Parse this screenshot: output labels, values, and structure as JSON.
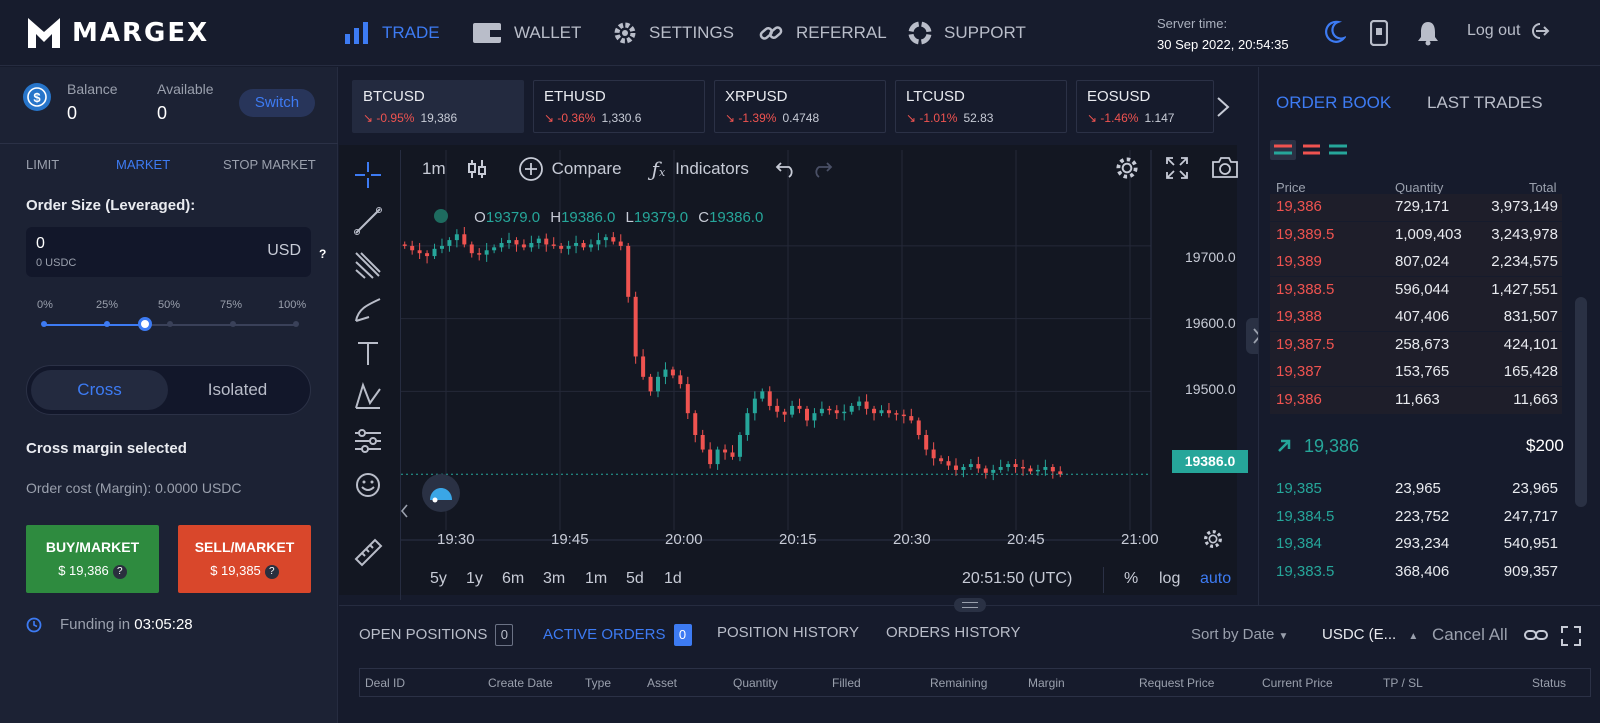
{
  "brand": {
    "name": "MARGEX"
  },
  "nav": [
    {
      "label": "TRADE",
      "icon": "bar-chart-icon"
    },
    {
      "label": "WALLET",
      "icon": "wallet-icon"
    },
    {
      "label": "SETTINGS",
      "icon": "gear-icon"
    },
    {
      "label": "REFERRAL",
      "icon": "link-icon"
    },
    {
      "label": "SUPPORT",
      "icon": "lifebuoy-icon"
    }
  ],
  "server": {
    "label": "Server time:",
    "value": "30 Sep 2022, 20:54:35"
  },
  "header_icons": [
    "moon-icon",
    "phone-icon",
    "bell-icon"
  ],
  "logout": {
    "label": "Log out"
  },
  "account": {
    "balance_label": "Balance",
    "balance": "0",
    "available_label": "Available",
    "available": "0",
    "switch_label": "Switch"
  },
  "order_types": [
    "LIMIT",
    "MARKET",
    "STOP MARKET"
  ],
  "order_size": {
    "label": "Order Size (Leveraged):",
    "value": "0",
    "sub": "0 USDC",
    "unit": "USD",
    "help": "?"
  },
  "percent_marks": [
    "0%",
    "25%",
    "50%",
    "75%",
    "100%"
  ],
  "slider_fraction": 0.4,
  "margin_mode": {
    "cross": "Cross",
    "isolated": "Isolated",
    "selected_text": "Cross margin selected",
    "order_cost": "Order cost (Margin): 0.0000 USDC"
  },
  "buy": {
    "label": "BUY/MARKET",
    "price": "$ 19,386",
    "help": "?"
  },
  "sell": {
    "label": "SELL/MARKET",
    "price": "$ 19,385",
    "help": "?"
  },
  "funding": {
    "label": "Funding in",
    "value": "03:05:28"
  },
  "tickers": [
    {
      "symbol": "BTCUSD",
      "change": "-0.95%",
      "price": "19,386"
    },
    {
      "symbol": "ETHUSD",
      "change": "-0.36%",
      "price": "1,330.6"
    },
    {
      "symbol": "XRPUSD",
      "change": "-1.39%",
      "price": "0.4748"
    },
    {
      "symbol": "LTCUSD",
      "change": "-1.01%",
      "price": "52.83"
    },
    {
      "symbol": "EOSUSD",
      "change": "-1.46%",
      "price": "1.147"
    }
  ],
  "chart_toolbar": {
    "interval": "1m",
    "compare": "Compare",
    "indicators": "Indicators"
  },
  "ohlc": {
    "o_label": "O",
    "o": "19379.0",
    "h_label": "H",
    "h": "19386.0",
    "l_label": "L",
    "l": "19379.0",
    "c_label": "C",
    "c": "19386.0"
  },
  "current_price": "19386.0",
  "range_buttons": [
    "5y",
    "1y",
    "6m",
    "3m",
    "1m",
    "5d",
    "1d"
  ],
  "chart_time": "20:51:50 (UTC)",
  "scale_buttons": {
    "percent": "%",
    "log": "log",
    "auto": "auto"
  },
  "colors": {
    "accent": "#3d7bf3",
    "up": "#26a69a",
    "down": "#ef5350",
    "buy": "#2e8b3f",
    "sell": "#d9472b"
  },
  "chart_data": {
    "type": "candlestick",
    "x_ticks": [
      "19:30",
      "19:45",
      "20:00",
      "20:15",
      "20:30",
      "20:45",
      "21:00"
    ],
    "y_ticks": [
      "19700.0",
      "19600.0",
      "19500.0"
    ],
    "ylim": [
      19330,
      19770
    ],
    "close_series": [
      19700,
      19694,
      19690,
      19686,
      19696,
      19700,
      19708,
      19716,
      19702,
      19690,
      19688,
      19694,
      19698,
      19704,
      19708,
      19702,
      19698,
      19704,
      19710,
      19702,
      19700,
      19696,
      19700,
      19704,
      19698,
      19702,
      19708,
      19712,
      19706,
      19700,
      19630,
      19548,
      19520,
      19500,
      19520,
      19530,
      19522,
      19510,
      19470,
      19440,
      19420,
      19400,
      19420,
      19416,
      19410,
      19440,
      19470,
      19490,
      19500,
      19480,
      19472,
      19468,
      19480,
      19476,
      19460,
      19470,
      19476,
      19474,
      19470,
      19472,
      19480,
      19486,
      19476,
      19470,
      19474,
      19470,
      19468,
      19466,
      19460,
      19440,
      19420,
      19408,
      19404,
      19398,
      19392,
      19396,
      19400,
      19394,
      19388,
      19392,
      19396,
      19400,
      19396,
      19394,
      19390,
      19392,
      19396,
      19390,
      19386
    ],
    "current": 19386
  },
  "bottom_tabs": [
    {
      "label": "OPEN POSITIONS",
      "count": "0"
    },
    {
      "label": "ACTIVE ORDERS",
      "count": "0"
    },
    {
      "label": "POSITION HISTORY"
    },
    {
      "label": "ORDERS HISTORY"
    }
  ],
  "sort": {
    "label": "Sort by Date",
    "currency": "USDC (E...",
    "cancel_all": "Cancel All"
  },
  "table_headers": [
    "Deal ID",
    "Create Date",
    "Type",
    "Asset",
    "Quantity",
    "Filled",
    "Remaining",
    "Margin",
    "Request Price",
    "Current Price",
    "TP / SL",
    "Status"
  ],
  "order_book": {
    "tab1": "ORDER BOOK",
    "tab2": "LAST TRADES",
    "headers": [
      "Price",
      "Quantity",
      "Total"
    ],
    "asks": [
      {
        "price": "19,386",
        "qty": "729,171",
        "total": "3,973,149"
      },
      {
        "price": "19,389.5",
        "qty": "1,009,403",
        "total": "3,243,978"
      },
      {
        "price": "19,389",
        "qty": "807,024",
        "total": "2,234,575"
      },
      {
        "price": "19,388.5",
        "qty": "596,044",
        "total": "1,427,551"
      },
      {
        "price": "19,388",
        "qty": "407,406",
        "total": "831,507"
      },
      {
        "price": "19,387.5",
        "qty": "258,673",
        "total": "424,101"
      },
      {
        "price": "19,387",
        "qty": "153,765",
        "total": "165,428"
      },
      {
        "price": "19,386",
        "qty": "11,663",
        "total": "11,663"
      }
    ],
    "mid_price": "19,386",
    "mid_usd": "$200",
    "bids": [
      {
        "price": "19,385",
        "qty": "23,965",
        "total": "23,965"
      },
      {
        "price": "19,384.5",
        "qty": "223,752",
        "total": "247,717"
      },
      {
        "price": "19,384",
        "qty": "293,234",
        "total": "540,951"
      },
      {
        "price": "19,383.5",
        "qty": "368,406",
        "total": "909,357"
      }
    ]
  }
}
